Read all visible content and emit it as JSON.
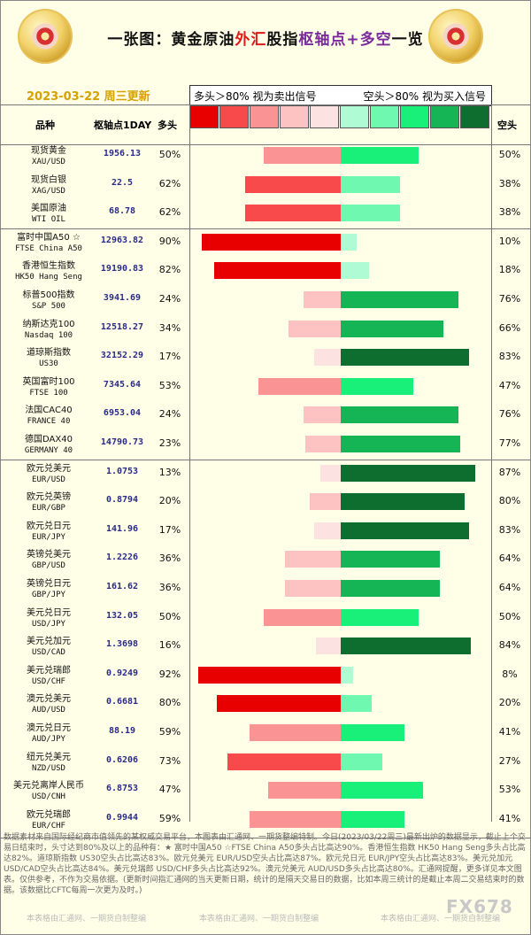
{
  "header": {
    "title_parts": [
      "一张图：黄金原油",
      "外汇",
      "股指",
      "枢轴点+多空",
      "一览"
    ],
    "date": "2023-03-22 周三更新",
    "legend_left": "多头＞80% 视为卖出信号",
    "legend_right": "空头＞80% 视为买入信号"
  },
  "columns": {
    "name": "品种",
    "pivot": "枢轴点1DAY",
    "bull": "多头",
    "bear": "空头"
  },
  "legend_colors": {
    "bull": [
      "#E80000",
      "#F84A4A",
      "#FA9494",
      "#FDC2C2",
      "#FDE2E2"
    ],
    "bear": [
      "#AEFBD4",
      "#6EF8B0",
      "#19F07A",
      "#15B556",
      "#0D6E30"
    ]
  },
  "chart_data": {
    "type": "bar",
    "series": [
      {
        "name": "多头"
      },
      {
        "name": "空头"
      }
    ],
    "rows": [
      {
        "name": "现货黄金",
        "code": "XAU/USD",
        "pivot": "1956.13",
        "bull": 50,
        "bear": 50
      },
      {
        "name": "现货白银",
        "code": "XAG/USD",
        "pivot": "22.5",
        "bull": 62,
        "bear": 38
      },
      {
        "name": "美国原油",
        "code": "WTI OIL",
        "pivot": "68.78",
        "bull": 62,
        "bear": 38
      },
      {
        "name": "富时中国A50 ☆",
        "code": "FTSE China A50",
        "pivot": "12963.82",
        "bull": 90,
        "bear": 10
      },
      {
        "name": "香港恒生指数",
        "code": "HK50 Hang Seng",
        "pivot": "19190.83",
        "bull": 82,
        "bear": 18
      },
      {
        "name": "标普500指数",
        "code": "S&P 500",
        "pivot": "3941.69",
        "bull": 24,
        "bear": 76
      },
      {
        "name": "纳斯达克100",
        "code": "Nasdaq 100",
        "pivot": "12518.27",
        "bull": 34,
        "bear": 66
      },
      {
        "name": "道琼斯指数",
        "code": "US30",
        "pivot": "32152.29",
        "bull": 17,
        "bear": 83
      },
      {
        "name": "英国富时100",
        "code": "FTSE 100",
        "pivot": "7345.64",
        "bull": 53,
        "bear": 47
      },
      {
        "name": "法国CAC40",
        "code": "FRANCE 40",
        "pivot": "6953.04",
        "bull": 24,
        "bear": 76
      },
      {
        "name": "德国DAX40",
        "code": "GERMANY 40",
        "pivot": "14790.73",
        "bull": 23,
        "bear": 77
      },
      {
        "name": "欧元兑美元",
        "code": "EUR/USD",
        "pivot": "1.0753",
        "bull": 13,
        "bear": 87
      },
      {
        "name": "欧元兑英镑",
        "code": "EUR/GBP",
        "pivot": "0.8794",
        "bull": 20,
        "bear": 80
      },
      {
        "name": "欧元兑日元",
        "code": "EUR/JPY",
        "pivot": "141.96",
        "bull": 17,
        "bear": 83
      },
      {
        "name": "英镑兑美元",
        "code": "GBP/USD",
        "pivot": "1.2226",
        "bull": 36,
        "bear": 64
      },
      {
        "name": "英镑兑日元",
        "code": "GBP/JPY",
        "pivot": "161.62",
        "bull": 36,
        "bear": 64
      },
      {
        "name": "美元兑日元",
        "code": "USD/JPY",
        "pivot": "132.05",
        "bull": 50,
        "bear": 50
      },
      {
        "name": "美元兑加元",
        "code": "USD/CAD",
        "pivot": "1.3698",
        "bull": 16,
        "bear": 84
      },
      {
        "name": "美元兑瑞郎",
        "code": "USD/CHF",
        "pivot": "0.9249",
        "bull": 92,
        "bear": 8
      },
      {
        "name": "澳元兑美元",
        "code": "AUD/USD",
        "pivot": "0.6681",
        "bull": 80,
        "bear": 20
      },
      {
        "name": "澳元兑日元",
        "code": "AUD/JPY",
        "pivot": "88.19",
        "bull": 59,
        "bear": 41
      },
      {
        "name": "纽元兑美元",
        "code": "NZD/USD",
        "pivot": "0.6206",
        "bull": 73,
        "bear": 27
      },
      {
        "name": "美元兑离岸人民币",
        "code": "USD/CNH",
        "pivot": "6.8753",
        "bull": 47,
        "bear": 53
      },
      {
        "name": "欧元兑瑞郎",
        "code": "EUR/CHF",
        "pivot": "0.9944",
        "bull": 59,
        "bear": 41
      }
    ]
  },
  "footer": {
    "text": "数据素材来自国际经纪商市值领先的某权威交易平台，本图表由汇通网、一期货整编特制。今日(2023/03/22周三)最新出炉的数据显示，截止上个交易日结束时，头寸达到80%及以上的品种有：★ 富时中国A50 ☆FTSE China A50多头占比高达90%。香港恒生指数 HK50 Hang Seng多头占比高达82%。道琼斯指数 US30空头占比高达83%。欧元兑美元 EUR/USD空头占比高达87%。欧元兑日元 EUR/JPY空头占比高达83%。美元兑加元 USD/CAD空头占比高达84%。美元兑瑞郎 USD/CHF多头占比高达92%。澳元兑美元 AUD/USD多头占比高达80%。汇通网提醒，更多详见本文图表。仅供参考，不作为交易依据。(更新时间指汇通网的当天更新日期，统计的是隔天交易日的数据，比如本周三统计的是截止本周二交易结束时的数据。该数据比CFTC每周一次更为及时。)",
    "credit": "本表格由汇通网、一期货自制整编",
    "watermark": "FX678"
  }
}
